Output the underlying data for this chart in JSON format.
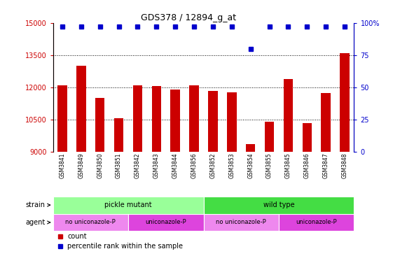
{
  "title": "GDS378 / 12894_g_at",
  "samples": [
    "GSM3841",
    "GSM3849",
    "GSM3850",
    "GSM3851",
    "GSM3842",
    "GSM3843",
    "GSM3844",
    "GSM3856",
    "GSM3852",
    "GSM3853",
    "GSM3854",
    "GSM3855",
    "GSM3845",
    "GSM3846",
    "GSM3847",
    "GSM3848"
  ],
  "counts": [
    12100,
    13000,
    11500,
    10550,
    12100,
    12050,
    11900,
    12100,
    11850,
    11780,
    9350,
    10400,
    12400,
    10350,
    11750,
    13600
  ],
  "percentiles": [
    97,
    97,
    97,
    97,
    97,
    97,
    97,
    97,
    97,
    97,
    80,
    97,
    97,
    97,
    97,
    97
  ],
  "bar_color": "#cc0000",
  "dot_color": "#0000cc",
  "ylim_left": [
    9000,
    15000
  ],
  "ylim_right": [
    0,
    100
  ],
  "yticks_left": [
    9000,
    10500,
    12000,
    13500,
    15000
  ],
  "yticks_right": [
    0,
    25,
    50,
    75,
    100
  ],
  "grid_lines": [
    10500,
    12000,
    13500
  ],
  "strain_groups": [
    {
      "label": "pickle mutant",
      "start": 0,
      "end": 8,
      "color": "#99ff99"
    },
    {
      "label": "wild type",
      "start": 8,
      "end": 16,
      "color": "#44dd44"
    }
  ],
  "agent_groups": [
    {
      "label": "no uniconazole-P",
      "start": 0,
      "end": 4,
      "color": "#ee88ee"
    },
    {
      "label": "uniconazole-P",
      "start": 4,
      "end": 8,
      "color": "#dd44dd"
    },
    {
      "label": "no uniconazole-P",
      "start": 8,
      "end": 12,
      "color": "#ee88ee"
    },
    {
      "label": "uniconazole-P",
      "start": 12,
      "end": 16,
      "color": "#dd44dd"
    }
  ],
  "strain_label": "strain",
  "agent_label": "agent",
  "legend_count_color": "#cc0000",
  "legend_dot_color": "#0000cc",
  "legend_count_text": "count",
  "legend_dot_text": "percentile rank within the sample",
  "bg_color": "#ffffff",
  "tick_area_bg": "#cccccc"
}
